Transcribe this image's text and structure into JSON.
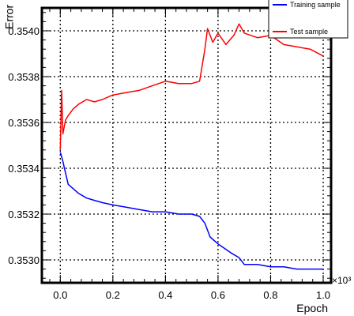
{
  "chart_data": {
    "type": "line",
    "xlabel": "Epoch",
    "ylabel": "Error",
    "x_multiplier_label": "×10³",
    "xlim": [
      -0.07,
      1.03
    ],
    "ylim": [
      0.3529,
      0.3541
    ],
    "grid": true,
    "legend_position": "top-right",
    "x_ticks": [
      0.0,
      0.2,
      0.4,
      0.6,
      0.8,
      1.0
    ],
    "x_tick_labels": [
      "0.0",
      "0.2",
      "0.4",
      "0.6",
      "0.8",
      "1.0"
    ],
    "y_ticks": [
      0.353,
      0.3532,
      0.3534,
      0.3536,
      0.3538,
      0.354
    ],
    "y_tick_labels": [
      "0.3530",
      "0.3532",
      "0.3534",
      "0.3536",
      "0.3538",
      "0.3540"
    ],
    "series": [
      {
        "name": "Training sample",
        "color": "#0000ff",
        "x": [
          0.0,
          0.005,
          0.01,
          0.02,
          0.03,
          0.05,
          0.07,
          0.1,
          0.13,
          0.16,
          0.2,
          0.25,
          0.3,
          0.35,
          0.4,
          0.45,
          0.5,
          0.53,
          0.55,
          0.57,
          0.6,
          0.65,
          0.68,
          0.7,
          0.75,
          0.8,
          0.85,
          0.9,
          0.95,
          1.0
        ],
        "y": [
          0.35347,
          0.35345,
          0.35343,
          0.35338,
          0.35333,
          0.35331,
          0.35329,
          0.35327,
          0.35326,
          0.35325,
          0.35324,
          0.35323,
          0.35322,
          0.35321,
          0.35321,
          0.3532,
          0.3532,
          0.35319,
          0.35316,
          0.3531,
          0.35307,
          0.35303,
          0.35301,
          0.35298,
          0.35298,
          0.35297,
          0.35297,
          0.35296,
          0.35296,
          0.35296
        ]
      },
      {
        "name": "Test sample",
        "color": "#ff0000",
        "x": [
          0.0,
          0.005,
          0.01,
          0.02,
          0.03,
          0.05,
          0.07,
          0.1,
          0.13,
          0.16,
          0.2,
          0.25,
          0.3,
          0.35,
          0.4,
          0.45,
          0.5,
          0.53,
          0.55,
          0.56,
          0.58,
          0.6,
          0.63,
          0.66,
          0.68,
          0.7,
          0.75,
          0.8,
          0.85,
          0.9,
          0.95,
          1.0
        ],
        "y": [
          0.35348,
          0.35374,
          0.35355,
          0.35361,
          0.35363,
          0.35366,
          0.35368,
          0.3537,
          0.35369,
          0.3537,
          0.35372,
          0.35373,
          0.35374,
          0.35376,
          0.35378,
          0.35377,
          0.35377,
          0.35378,
          0.35392,
          0.35401,
          0.35395,
          0.35399,
          0.35394,
          0.35398,
          0.35403,
          0.35399,
          0.35397,
          0.35398,
          0.35394,
          0.35393,
          0.35392,
          0.35389
        ]
      }
    ]
  }
}
